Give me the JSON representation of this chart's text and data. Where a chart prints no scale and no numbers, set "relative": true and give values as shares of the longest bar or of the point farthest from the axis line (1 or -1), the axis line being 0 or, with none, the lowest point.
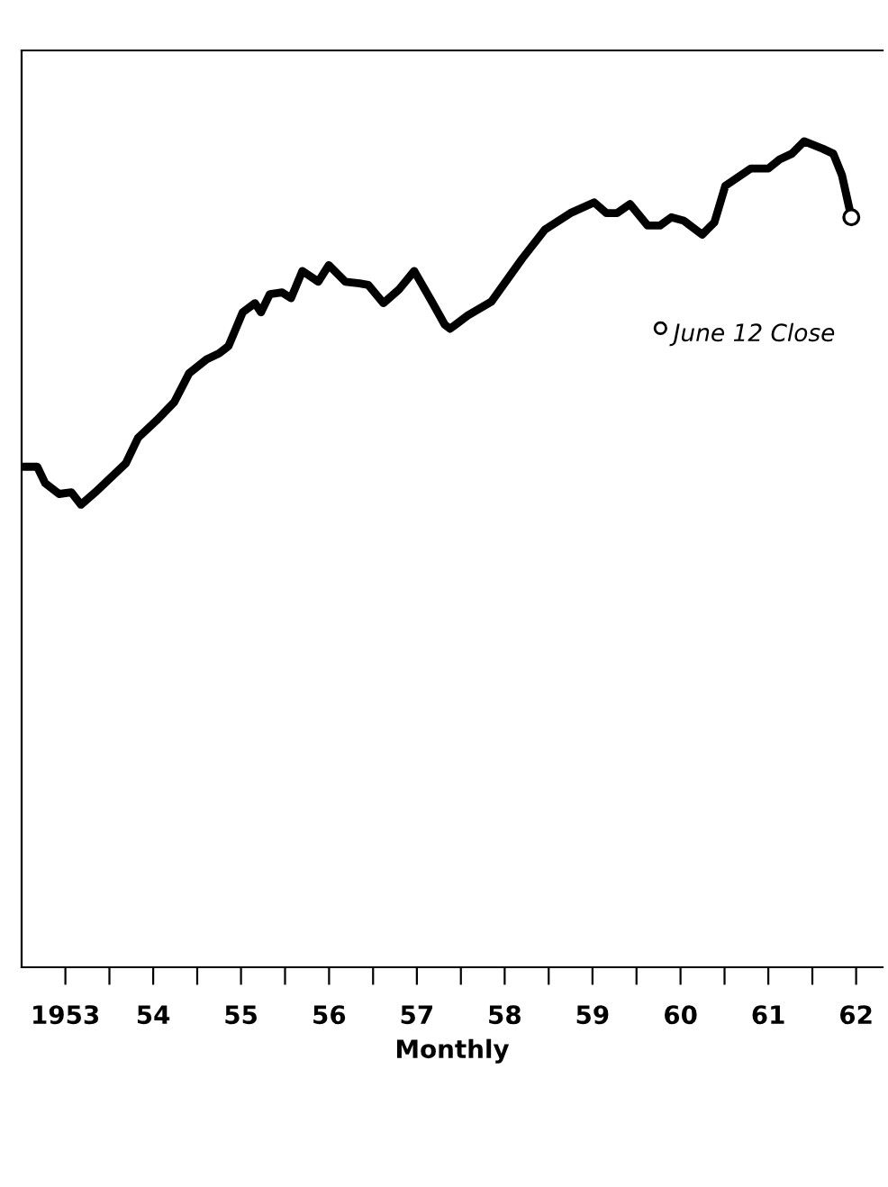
{
  "chart_data": {
    "type": "line",
    "relative": true,
    "xlabel": "Monthly",
    "x": [
      "1953-01-08",
      "1953-03-07",
      "1953-04-09",
      "1953-06-06",
      "1953-07-27",
      "1953-09-05",
      "1953-11-03",
      "1954-03-10",
      "1954-04-30",
      "1954-07-16",
      "1954-09-27",
      "1954-11-28",
      "1955-02-09",
      "1955-04-01",
      "1955-05-11",
      "1955-07-09",
      "1955-08-29",
      "1955-09-23",
      "1955-10-30",
      "1955-12-20",
      "1956-01-26",
      "1956-03-13",
      "1956-05-18",
      "1956-07-01",
      "1956-09-08",
      "1956-11-05",
      "1956-12-12",
      "1957-02-13",
      "1957-04-20",
      "1957-06-21",
      "1957-09-02",
      "1957-10-26",
      "1957-11-17",
      "1958-01-29",
      "1958-05-08",
      "1958-09-13",
      "1958-12-16",
      "1959-04-01",
      "1959-07-09",
      "1959-08-29",
      "1959-10-12",
      "1959-12-05",
      "1960-02-16",
      "1960-04-08",
      "1960-05-25",
      "1960-07-15",
      "1960-09-30",
      "1960-11-20",
      "1961-01-04",
      "1961-04-20",
      "1961-07-02",
      "1961-08-18",
      "1961-10-08",
      "1961-11-28",
      "1962-02-13",
      "1962-03-29",
      "1962-05-04",
      "1962-06-12"
    ],
    "series": [
      {
        "color": "#000000",
        "values": [
          0.606,
          0.606,
          0.586,
          0.573,
          0.575,
          0.56,
          0.575,
          0.61,
          0.641,
          0.662,
          0.684,
          0.719,
          0.736,
          0.743,
          0.752,
          0.793,
          0.804,
          0.793,
          0.815,
          0.817,
          0.81,
          0.843,
          0.83,
          0.85,
          0.83,
          0.828,
          0.826,
          0.804,
          0.821,
          0.843,
          0.806,
          0.778,
          0.773,
          0.789,
          0.806,
          0.858,
          0.893,
          0.913,
          0.926,
          0.913,
          0.913,
          0.924,
          0.898,
          0.898,
          0.908,
          0.904,
          0.887,
          0.902,
          0.946,
          0.967,
          0.967,
          0.978,
          0.985,
          1.0,
          0.991,
          0.985,
          0.959,
          0.908
        ]
      }
    ],
    "xlim": [
      "1953-01-01",
      "1962-10-20"
    ],
    "xticks": [
      {
        "value": "1953-07-02",
        "label": "1953"
      },
      {
        "value": "1954-07-02",
        "label": "54"
      },
      {
        "value": "1955-07-02",
        "label": "55"
      },
      {
        "value": "1956-07-02",
        "label": "56"
      },
      {
        "value": "1957-07-02",
        "label": "57"
      },
      {
        "value": "1958-07-02",
        "label": "58"
      },
      {
        "value": "1959-07-02",
        "label": "59"
      },
      {
        "value": "1960-07-02",
        "label": "60"
      },
      {
        "value": "1961-07-02",
        "label": "61"
      },
      {
        "value": "1962-07-02",
        "label": "62"
      },
      {
        "value": "1954-01-01",
        "label": null
      },
      {
        "value": "1955-01-01",
        "label": null
      },
      {
        "value": "1956-01-01",
        "label": null
      },
      {
        "value": "1957-01-01",
        "label": null
      },
      {
        "value": "1958-01-01",
        "label": null
      },
      {
        "value": "1959-01-01",
        "label": null
      },
      {
        "value": "1960-01-01",
        "label": null
      },
      {
        "value": "1961-01-01",
        "label": null
      },
      {
        "value": "1962-01-01",
        "label": null
      }
    ],
    "annotations": [
      "June 12 Close"
    ],
    "grid": false,
    "legend": false
  }
}
